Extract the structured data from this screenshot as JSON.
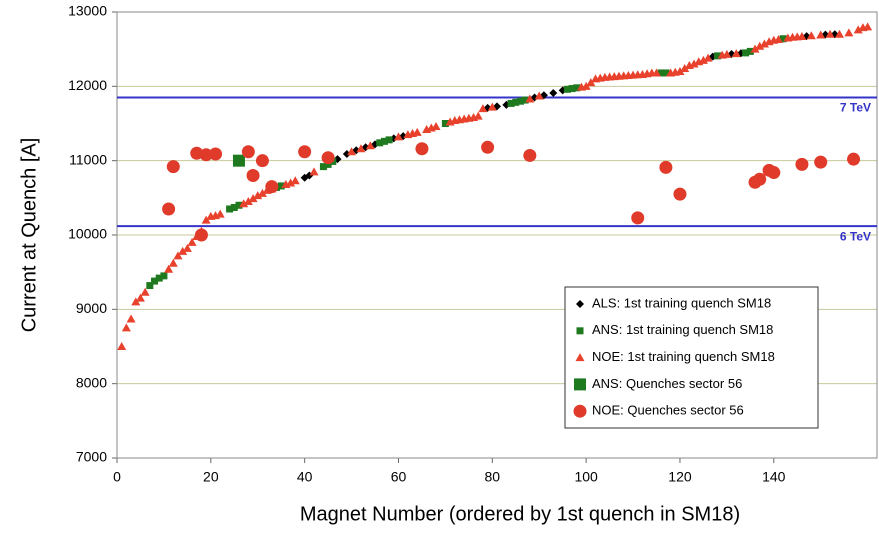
{
  "chart_data": {
    "type": "scatter",
    "x_label": "Magnet Number (ordered by 1st quench in SM18)",
    "y_label": "Current at Quench [A]",
    "xlim": [
      0,
      162
    ],
    "ylim": [
      7000,
      13000
    ],
    "xticks": [
      0,
      20,
      40,
      60,
      80,
      100,
      120,
      140
    ],
    "yticks": [
      7000,
      8000,
      9000,
      10000,
      11000,
      12000,
      13000
    ],
    "grid": true,
    "legend": "lower right",
    "reference_lines": [
      {
        "value": 11850,
        "label": "7 TeV",
        "color": "#3434c8"
      },
      {
        "value": 10120,
        "label": "6 TeV",
        "color": "#3434c8"
      }
    ],
    "series": [
      {
        "name": "ALS: 1st training quench SM18",
        "marker": "diamond",
        "color": "#000000",
        "x": [
          40,
          41,
          47,
          49,
          51,
          53,
          55,
          59,
          61,
          79,
          81,
          83,
          89,
          91,
          93,
          95,
          127,
          131,
          133,
          147,
          151,
          153
        ],
        "values": [
          10770,
          10800,
          11020,
          11090,
          11140,
          11180,
          11220,
          11300,
          11330,
          11710,
          11730,
          11750,
          11850,
          11880,
          11910,
          11945,
          12400,
          12435,
          12445,
          12675,
          12695,
          12700
        ]
      },
      {
        "name": "ANS: 1st training quench SM18",
        "marker": "square",
        "color": "#1f7a1f",
        "x": [
          7,
          8,
          9,
          10,
          24,
          25,
          26,
          34,
          35,
          44,
          45,
          46,
          56,
          57,
          58,
          70,
          84,
          85,
          86,
          87,
          96,
          97,
          98,
          116,
          117,
          128,
          134,
          135,
          142
        ],
        "values": [
          9320,
          9380,
          9420,
          9450,
          10350,
          10370,
          10400,
          10640,
          10660,
          10920,
          10950,
          10990,
          11240,
          11260,
          11280,
          11500,
          11770,
          11785,
          11800,
          11815,
          11960,
          11970,
          11980,
          12180,
          12180,
          12410,
          12450,
          12470,
          12640
        ]
      },
      {
        "name": "NOE: 1st training quench SM18",
        "marker": "triangle",
        "color": "#e8412c",
        "x": [
          1,
          2,
          3,
          4,
          5,
          6,
          11,
          12,
          13,
          14,
          15,
          16,
          17,
          18,
          19,
          20,
          21,
          22,
          27,
          28,
          29,
          30,
          31,
          32,
          33,
          36,
          37,
          38,
          42,
          50,
          52,
          54,
          60,
          62,
          63,
          64,
          66,
          67,
          68,
          71,
          72,
          73,
          74,
          75,
          76,
          77,
          78,
          80,
          88,
          90,
          99,
          100,
          101,
          102,
          103,
          104,
          105,
          106,
          107,
          108,
          109,
          110,
          111,
          112,
          113,
          114,
          115,
          118,
          119,
          120,
          121,
          122,
          123,
          124,
          125,
          126,
          129,
          130,
          132,
          136,
          137,
          138,
          139,
          140,
          141,
          143,
          144,
          145,
          146,
          148,
          150,
          152,
          154,
          156,
          158,
          159,
          160
        ],
        "values": [
          8500,
          8750,
          8870,
          9100,
          9150,
          9230,
          9540,
          9620,
          9720,
          9780,
          9820,
          9900,
          9980,
          10050,
          10200,
          10250,
          10260,
          10280,
          10420,
          10450,
          10490,
          10530,
          10560,
          10600,
          10620,
          10680,
          10700,
          10730,
          10850,
          11120,
          11160,
          11200,
          11320,
          11350,
          11365,
          11380,
          11420,
          11440,
          11460,
          11520,
          11540,
          11550,
          11560,
          11570,
          11580,
          11600,
          11700,
          11720,
          11830,
          11870,
          11990,
          12000,
          12050,
          12100,
          12110,
          12120,
          12125,
          12130,
          12135,
          12140,
          12145,
          12150,
          12155,
          12160,
          12170,
          12180,
          12180,
          12180,
          12190,
          12200,
          12240,
          12280,
          12300,
          12330,
          12350,
          12380,
          12420,
          12430,
          12440,
          12500,
          12540,
          12570,
          12600,
          12620,
          12630,
          12650,
          12660,
          12665,
          12670,
          12680,
          12690,
          12700,
          12700,
          12720,
          12760,
          12790,
          12800
        ]
      },
      {
        "name": "ANS: Quenches sector 56",
        "marker": "square-large",
        "color": "#1f7a1f",
        "x": [
          26
        ],
        "values": [
          11000
        ]
      },
      {
        "name": "NOE: Quenches sector 56",
        "marker": "circle",
        "color": "#e03a2a",
        "x": [
          11,
          12,
          17,
          18,
          19,
          21,
          28,
          29,
          31,
          33,
          40,
          45,
          65,
          79,
          88,
          111,
          117,
          120,
          136,
          137,
          139,
          140,
          146,
          150,
          157
        ],
        "values": [
          10350,
          10920,
          11100,
          10000,
          11080,
          11090,
          11120,
          10800,
          11000,
          10650,
          11120,
          11040,
          11160,
          11180,
          11070,
          10230,
          10910,
          10550,
          10710,
          10750,
          10870,
          10840,
          10950,
          10980,
          11020
        ]
      }
    ]
  }
}
